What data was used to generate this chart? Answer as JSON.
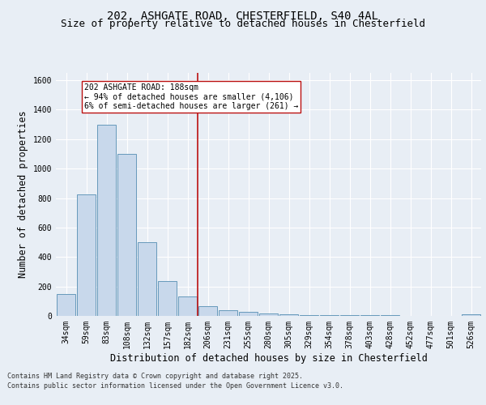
{
  "title_line1": "202, ASHGATE ROAD, CHESTERFIELD, S40 4AL",
  "title_line2": "Size of property relative to detached houses in Chesterfield",
  "xlabel": "Distribution of detached houses by size in Chesterfield",
  "ylabel": "Number of detached properties",
  "footer_line1": "Contains HM Land Registry data © Crown copyright and database right 2025.",
  "footer_line2": "Contains public sector information licensed under the Open Government Licence v3.0.",
  "annotation_line1": "202 ASHGATE ROAD: 188sqm",
  "annotation_line2": "← 94% of detached houses are smaller (4,106)",
  "annotation_line3": "6% of semi-detached houses are larger (261) →",
  "bar_color": "#c8d8eb",
  "bar_edge_color": "#6699bb",
  "vline_color": "#bb1111",
  "vline_x_index": 6,
  "categories": [
    "34sqm",
    "59sqm",
    "83sqm",
    "108sqm",
    "132sqm",
    "157sqm",
    "182sqm",
    "206sqm",
    "231sqm",
    "255sqm",
    "280sqm",
    "305sqm",
    "329sqm",
    "354sqm",
    "378sqm",
    "403sqm",
    "428sqm",
    "452sqm",
    "477sqm",
    "501sqm",
    "526sqm"
  ],
  "values": [
    150,
    825,
    1300,
    1100,
    500,
    235,
    130,
    65,
    38,
    27,
    15,
    10,
    5,
    5,
    5,
    5,
    5,
    2,
    2,
    2,
    10
  ],
  "ylim": [
    0,
    1650
  ],
  "yticks": [
    0,
    200,
    400,
    600,
    800,
    1000,
    1200,
    1400,
    1600
  ],
  "background_color": "#e8eef5",
  "plot_bg_color": "#e8eef5",
  "grid_color": "#ffffff",
  "title_fontsize": 10,
  "subtitle_fontsize": 9,
  "tick_fontsize": 7,
  "label_fontsize": 8.5,
  "footer_fontsize": 6,
  "annot_fontsize": 7
}
